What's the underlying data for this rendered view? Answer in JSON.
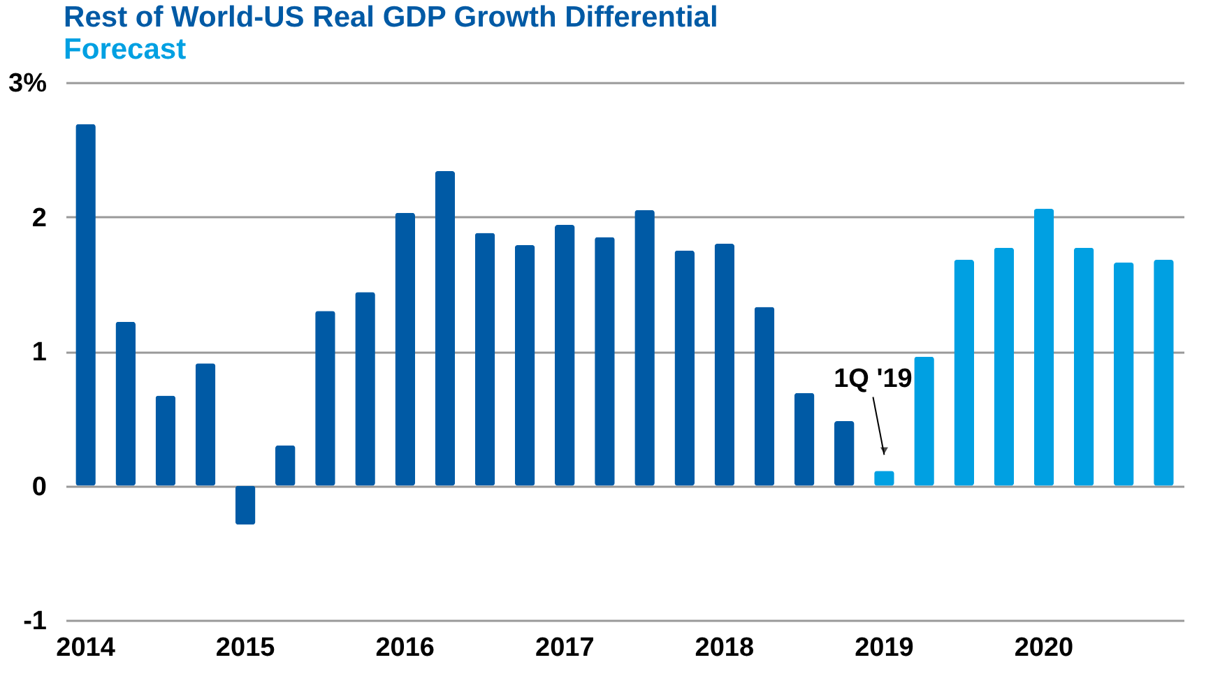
{
  "chart_data": {
    "type": "bar",
    "title": "Rest of World-US Real GDP Growth Differential",
    "categories": [
      "2014",
      null,
      null,
      null,
      "2015",
      null,
      null,
      null,
      "2016",
      null,
      null,
      null,
      "2017",
      null,
      null,
      null,
      "2018",
      null,
      null,
      null,
      "2019",
      null,
      null,
      null,
      "2020",
      null,
      null,
      null
    ],
    "series": [
      {
        "color": "#005aa5",
        "values": [
          2.69,
          1.22,
          0.67,
          0.91,
          -0.29,
          0.3,
          1.3,
          1.44,
          2.03,
          2.34,
          1.88,
          1.79,
          1.94,
          1.85,
          2.05,
          1.75,
          1.8,
          1.33,
          0.69,
          0.48,
          null,
          null,
          null,
          null,
          null,
          null,
          null,
          null
        ]
      },
      {
        "name": "Forecast",
        "color": "#00a0e2",
        "values": [
          null,
          null,
          null,
          null,
          null,
          null,
          null,
          null,
          null,
          null,
          null,
          null,
          null,
          null,
          null,
          null,
          null,
          null,
          null,
          null,
          0.11,
          0.96,
          1.68,
          1.77,
          2.06,
          1.77,
          1.66,
          1.68
        ]
      }
    ],
    "ylim": [
      -1,
      3
    ],
    "yticks": [
      -1,
      0,
      1,
      2,
      {
        "value": 3,
        "label": "3%"
      }
    ],
    "grid": "y",
    "legend": "top left",
    "annotations": [
      {
        "text": "1Q '19",
        "x": "2019",
        "y": 0.11
      }
    ]
  }
}
